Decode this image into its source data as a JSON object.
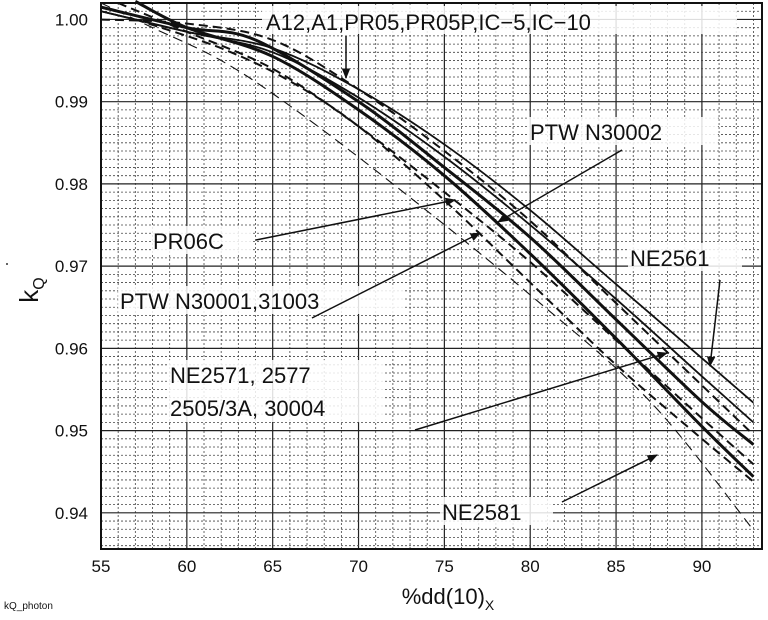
{
  "chart_data": {
    "type": "line",
    "title": "",
    "xlabel": "%dd(10)",
    "xlabel_subscript": "X",
    "ylabel": "k",
    "ylabel_subscript": "Q",
    "xlim": [
      55,
      93.5
    ],
    "ylim": [
      0.9356,
      1.002
    ],
    "x_ticks": [
      55,
      60,
      65,
      70,
      75,
      80,
      85,
      90
    ],
    "x_tick_labels": [
      "55",
      "60",
      "65",
      "70",
      "75",
      "80",
      "85",
      "90"
    ],
    "y_ticks": [
      1.0,
      0.99,
      0.98,
      0.97,
      0.96,
      0.95,
      0.94
    ],
    "y_tick_labels": [
      "1.00",
      "0.99",
      "0.98",
      "0.97",
      "0.96",
      "0.95",
      "0.94"
    ],
    "grid": {
      "major": true,
      "minor": true
    },
    "line_color": "#111111",
    "series": [
      {
        "style": "solid",
        "x": [
          55,
          60,
          65,
          70,
          75,
          80,
          85,
          90,
          93
        ],
        "y": [
          1.001,
          0.9985,
          0.9965,
          0.9915,
          0.9848,
          0.9768,
          0.9678,
          0.9588,
          0.9534
        ]
      },
      {
        "style": "solid",
        "x": [
          55,
          60,
          65,
          70,
          75,
          80,
          85,
          90,
          93
        ],
        "y": [
          1.001,
          0.9985,
          0.996,
          0.9905,
          0.9833,
          0.975,
          0.966,
          0.9566,
          0.951
        ]
      },
      {
        "style": "dashed",
        "x": [
          55,
          60,
          65,
          70,
          75,
          80,
          85,
          90,
          93
        ],
        "y": [
          1.0,
          0.9995,
          0.9975,
          0.9915,
          0.984,
          0.9755,
          0.9655,
          0.9555,
          0.9495
        ]
      },
      {
        "style": "solid-thick",
        "x": [
          55,
          60,
          64,
          70,
          75,
          80,
          85,
          90,
          93
        ],
        "y": [
          1.0015,
          0.999,
          0.9975,
          0.99,
          0.982,
          0.9735,
          0.9635,
          0.9535,
          0.9483
        ]
      },
      {
        "style": "dashed",
        "x": [
          56,
          60,
          65,
          70,
          75,
          80,
          85,
          90,
          93
        ],
        "y": [
          1.002,
          0.9985,
          0.994,
          0.987,
          0.979,
          0.9705,
          0.961,
          0.9515,
          0.9459
        ]
      },
      {
        "style": "solid-thick",
        "x": [
          57,
          60,
          65,
          70,
          75,
          80,
          85,
          90,
          93
        ],
        "y": [
          1.0022,
          0.999,
          0.9955,
          0.989,
          0.981,
          0.9715,
          0.9612,
          0.9505,
          0.9444
        ]
      },
      {
        "style": "dashed",
        "x": [
          57,
          62,
          66,
          70,
          75,
          80,
          85,
          90,
          93
        ],
        "y": [
          1.0,
          0.9965,
          0.9925,
          0.987,
          0.978,
          0.968,
          0.958,
          0.949,
          0.9438
        ]
      },
      {
        "style": "dashed-thin",
        "x": [
          55,
          58,
          62,
          66,
          72,
          80,
          87,
          93
        ],
        "y": [
          1.002,
          0.999,
          0.995,
          0.9895,
          0.98,
          0.9665,
          0.9535,
          0.9379
        ]
      }
    ],
    "annotations": [
      {
        "text": "A12,A1,PR05,PR05P,IC−5,IC−10"
      },
      {
        "text": "PTW N30002"
      },
      {
        "text": "PR06C"
      },
      {
        "text": "PTW N30001,31003"
      },
      {
        "text": "NE2561"
      },
      {
        "text": "NE2571, 2577"
      },
      {
        "text": "2505/3A, 30004"
      },
      {
        "text": "NE2581"
      }
    ]
  },
  "footer_label": "kQ_photon"
}
